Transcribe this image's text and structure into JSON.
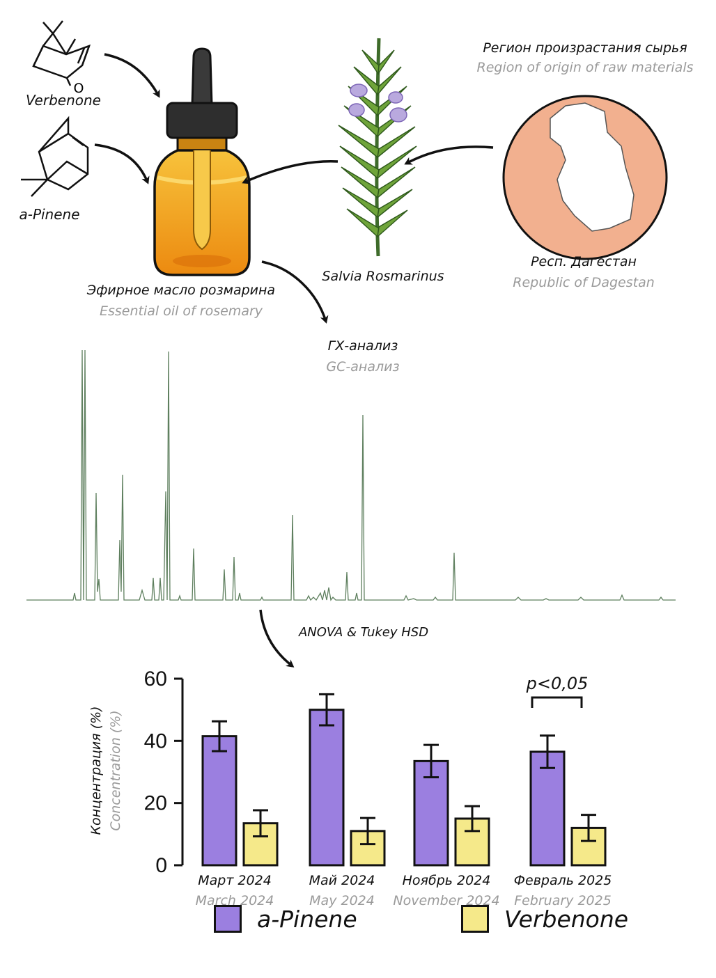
{
  "molecules": {
    "verbenone": "Verbenone",
    "verbenone_oxygen": "O",
    "pinene": "a-Pinene"
  },
  "oil": {
    "ru": "Эфирное масло розмарина",
    "en": "Essential oil of rosemary"
  },
  "plant": {
    "name": "Salvia Rosmarinus"
  },
  "region": {
    "title_ru": "Регион произрастания сырья",
    "title_en": "Region of origin of raw materials",
    "name_ru": "Респ. Дагестан",
    "name_en": "Republic of Dagestan"
  },
  "gc": {
    "ru": "ГХ-анализ",
    "en": "GC-анализ"
  },
  "stats": {
    "label": "ANOVA & Tukey HSD"
  },
  "colors": {
    "pinene": "#9b7fe0",
    "verbenone": "#f5e98a",
    "region_circle": "#f2b08f",
    "bottle": "#f0a21a",
    "chromatogram": "#5e7f5e"
  },
  "chart_data": {
    "type": "bar",
    "ylabel_ru": "Концентрация (%)",
    "ylabel_en": "Concentration (%)",
    "ylim": [
      0,
      60
    ],
    "yticks": [
      "0",
      "20",
      "40",
      "60"
    ],
    "categories_ru": [
      "Март 2024",
      "Май 2024",
      "Ноябрь 2024",
      "Февраль 2025"
    ],
    "categories_en": [
      "March 2024",
      "May 2024",
      "November 2024",
      "February 2025"
    ],
    "series": [
      {
        "name": "a-Pinene",
        "values": [
          41.5,
          50,
          33.5,
          36.5
        ],
        "errors": [
          4.8,
          5,
          5.2,
          5.2
        ]
      },
      {
        "name": "Verbenone",
        "values": [
          13.5,
          11,
          15,
          12
        ],
        "errors": [
          4.2,
          4.2,
          4,
          4.2
        ]
      }
    ],
    "annotation": "p<0,05",
    "legend": [
      "a-Pinene",
      "Verbenone"
    ]
  }
}
